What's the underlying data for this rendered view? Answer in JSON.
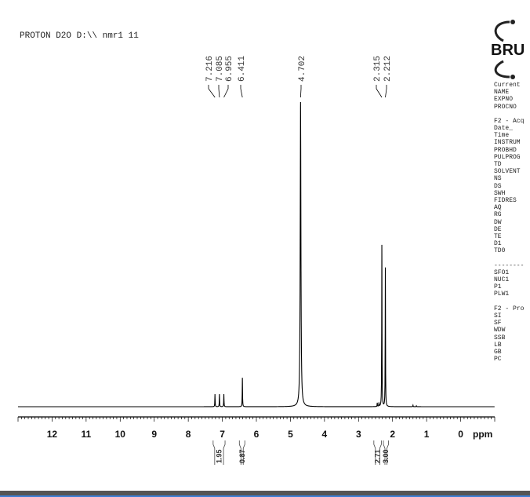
{
  "header": {
    "title": "PROTON D2O D:\\\\ nmr1 11"
  },
  "logo": {
    "text": "BRUKER"
  },
  "parameters": {
    "groups": [
      [
        "Current",
        "NAME",
        "EXPNO",
        "PROCNO"
      ],
      [
        "F2 - Acq",
        "Date_",
        "Time",
        "INSTRUM",
        "PROBHD",
        "PULPROG",
        "TD",
        "SOLVENT",
        "NS",
        "DS",
        "SWH",
        "FIDRES",
        "AQ",
        "RG",
        "DW",
        "DE",
        "TE",
        "D1",
        "TD0"
      ],
      [
        "--------",
        "SFO1",
        "NUC1",
        "P1",
        "PLW1"
      ],
      [
        "F2 - Pro",
        "SI",
        "SF",
        "WDW",
        "SSB",
        "LB",
        "GB",
        "PC"
      ]
    ]
  },
  "chart_data": {
    "type": "line",
    "title": "PROTON D2O D:\\\\ nmr1 11",
    "xlabel": "ppm",
    "xlim": [
      13,
      -1
    ],
    "x_reversed": true,
    "xticks": [
      12,
      11,
      10,
      9,
      8,
      7,
      6,
      5,
      4,
      3,
      2,
      1,
      0
    ],
    "grid": false,
    "peaks": [
      {
        "ppm": 7.216,
        "rel_intensity": 4.1,
        "label": "7.216"
      },
      {
        "ppm": 7.085,
        "rel_intensity": 4.1,
        "label": "7.085"
      },
      {
        "ppm": 6.955,
        "rel_intensity": 4.1,
        "label": "6.955"
      },
      {
        "ppm": 6.411,
        "rel_intensity": 9.5,
        "label": "6.411"
      },
      {
        "ppm": 4.702,
        "rel_intensity": 100,
        "label": "4.702"
      },
      {
        "ppm": 2.315,
        "rel_intensity": 53,
        "label": "2.315"
      },
      {
        "ppm": 2.212,
        "rel_intensity": 45.6,
        "label": "2.212"
      },
      {
        "ppm": 2.45,
        "rel_intensity": 1.2
      },
      {
        "ppm": 2.4,
        "rel_intensity": 1.2
      },
      {
        "ppm": 1.4,
        "rel_intensity": 0.5
      },
      {
        "ppm": 1.3,
        "rel_intensity": 0.3
      }
    ],
    "integrals": [
      {
        "from": 7.27,
        "to": 6.92,
        "value": "1.95"
      },
      {
        "from": 6.5,
        "to": 6.34,
        "value": "0.87"
      },
      {
        "from": 2.55,
        "to": 2.33,
        "value": "2.71"
      },
      {
        "from": 2.27,
        "to": 2.12,
        "value": "3.00"
      }
    ]
  }
}
